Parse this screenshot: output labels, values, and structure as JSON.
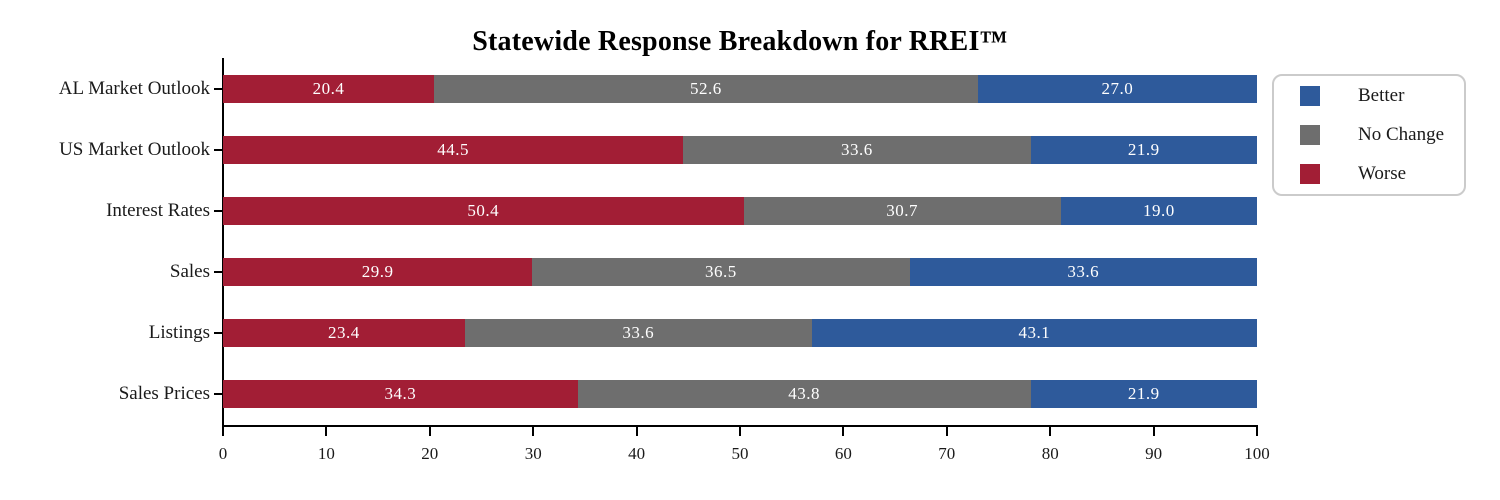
{
  "chart_data": {
    "type": "bar",
    "orientation": "horizontal",
    "stacked": true,
    "title": "Statewide Response Breakdown for RREI™",
    "categories": [
      "AL Market Outlook",
      "US Market Outlook",
      "Interest Rates",
      "Sales",
      "Listings",
      "Sales Prices"
    ],
    "series": [
      {
        "name": "Worse",
        "color": "#A21E35",
        "values": [
          20.4,
          44.5,
          50.4,
          29.9,
          23.4,
          34.3
        ]
      },
      {
        "name": "No Change",
        "color": "#6E6E6E",
        "values": [
          52.6,
          33.6,
          30.7,
          36.5,
          33.6,
          43.8
        ]
      },
      {
        "name": "Better",
        "color": "#2E5A9B",
        "values": [
          27.0,
          21.9,
          19.0,
          33.6,
          43.1,
          21.9
        ]
      }
    ],
    "xlim": [
      0,
      100
    ],
    "x_ticks": [
      0,
      10,
      20,
      30,
      40,
      50,
      60,
      70,
      80,
      90,
      100
    ],
    "grid": false,
    "value_labels": true,
    "legend_position": "upper_right"
  },
  "legend": {
    "items": [
      {
        "label": "Better",
        "color": "#2E5A9B"
      },
      {
        "label": "No Change",
        "color": "#6E6E6E"
      },
      {
        "label": "Worse",
        "color": "#A21E35"
      }
    ]
  },
  "colors": {
    "axis": "#000000",
    "text": "#1A1A1A",
    "value_label": "#FFFFFF",
    "legend_border": "#CBCBCB",
    "background": "#FFFFFF"
  }
}
